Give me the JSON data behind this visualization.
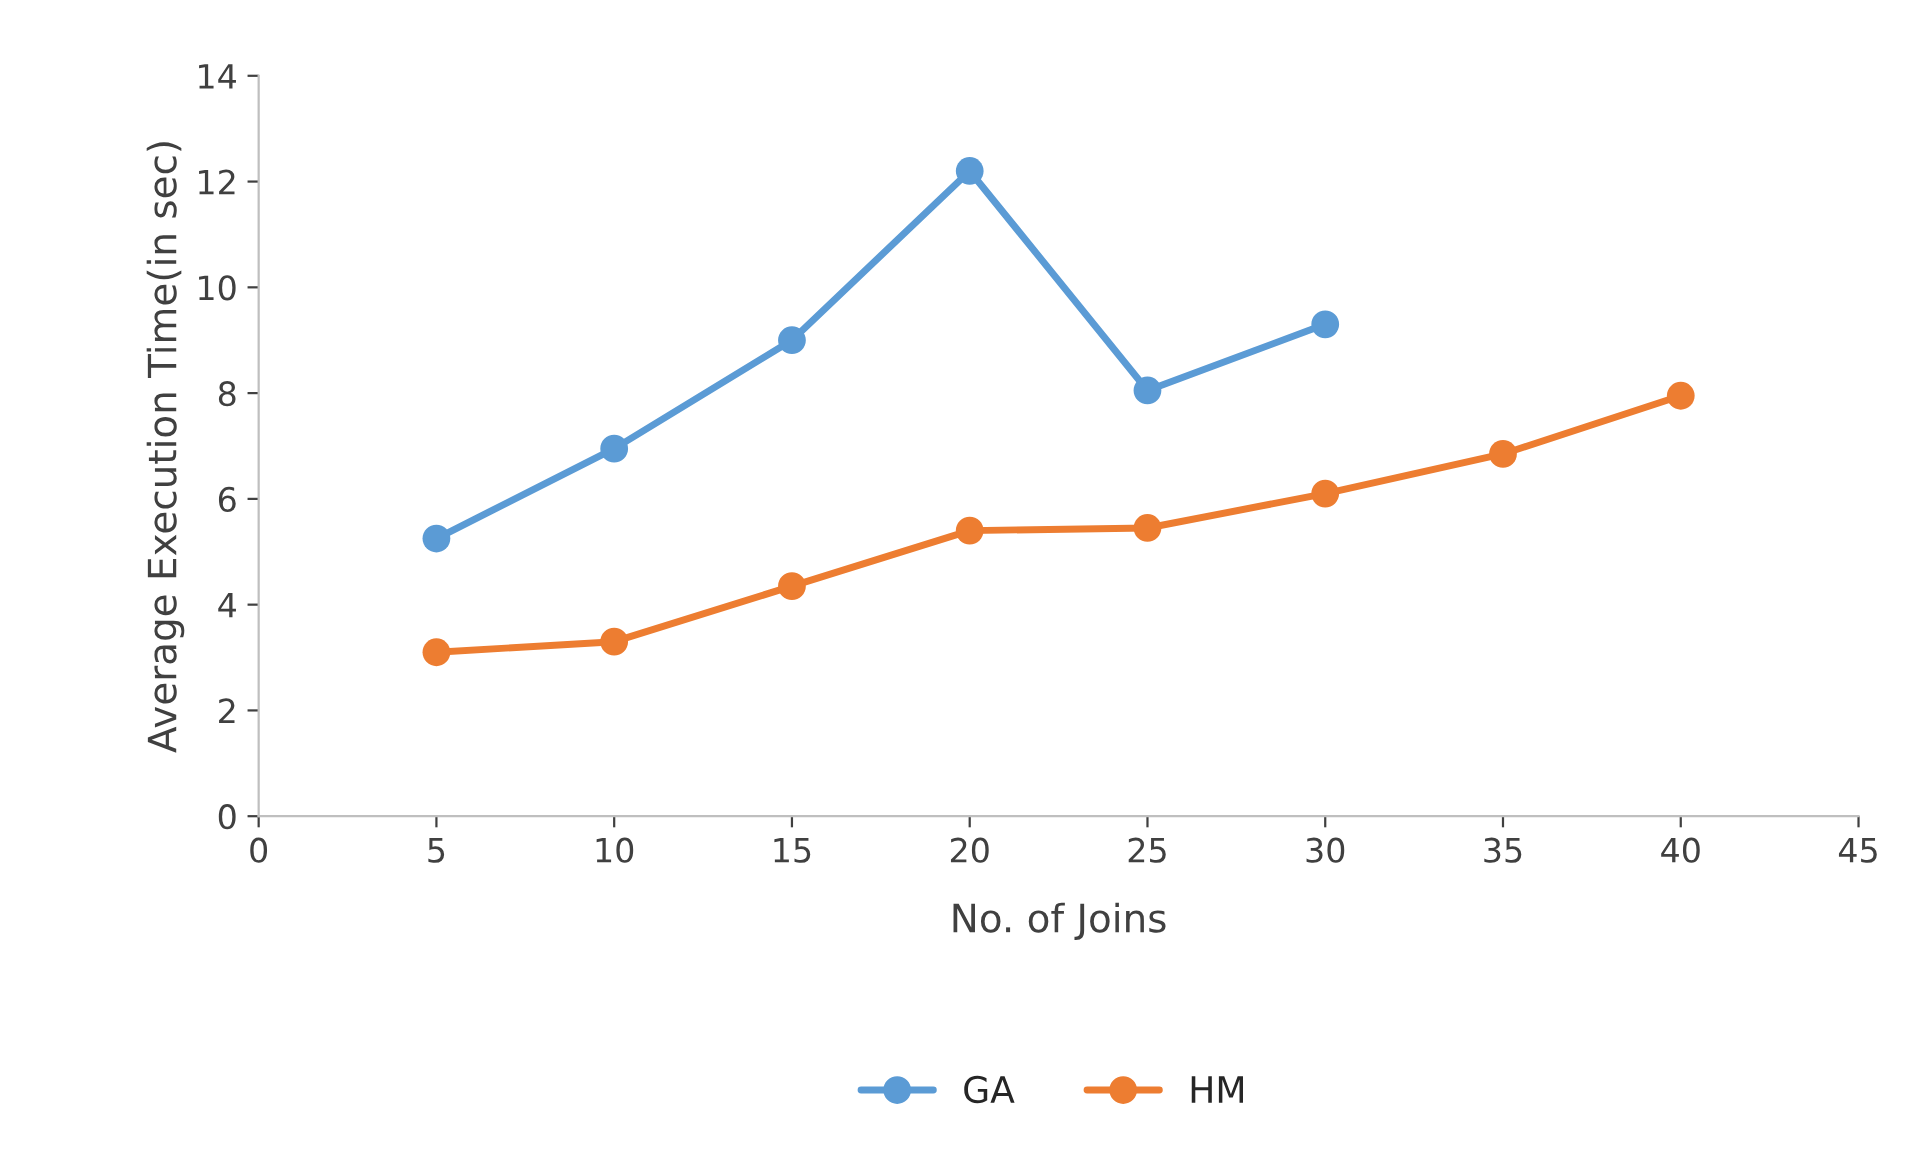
{
  "chart_data": {
    "type": "line",
    "xlabel": "No. of Joins",
    "ylabel": "Average Execution Time(in sec)",
    "xlim": [
      0,
      45
    ],
    "xticks": [
      0,
      5,
      10,
      15,
      20,
      25,
      30,
      35,
      40,
      45
    ],
    "ylim": [
      0,
      14
    ],
    "yticks": [
      0,
      2,
      4,
      6,
      8,
      10,
      12,
      14
    ],
    "grid": false,
    "legend": "bottom",
    "marker": "circle",
    "line_style": "solid",
    "series": [
      {
        "name": "GA",
        "color": "#5b9bd5",
        "x": [
          5,
          10,
          15,
          20,
          25,
          30
        ],
        "values": [
          5.25,
          6.95,
          9.0,
          12.2,
          8.05,
          9.3
        ]
      },
      {
        "name": "HM",
        "color": "#ed7d31",
        "x": [
          5,
          10,
          15,
          20,
          25,
          30,
          35,
          40
        ],
        "values": [
          3.1,
          3.3,
          4.35,
          5.4,
          5.45,
          6.1,
          6.85,
          7.95
        ]
      }
    ]
  }
}
